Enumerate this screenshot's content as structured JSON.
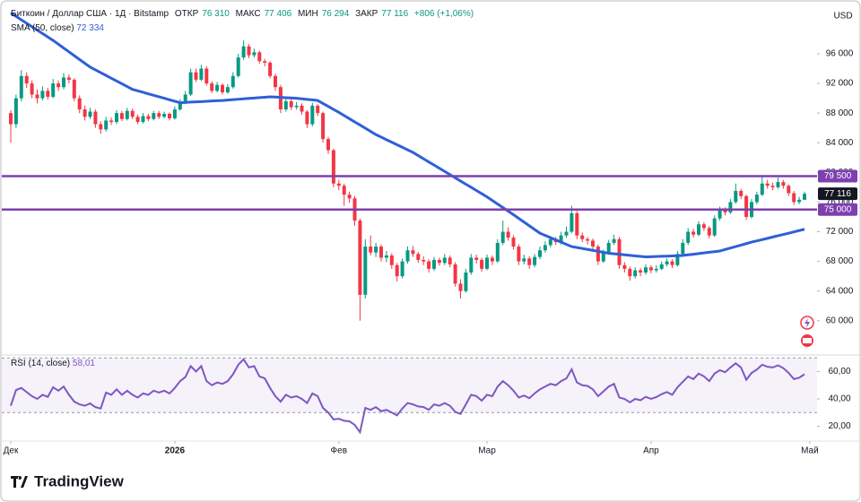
{
  "header": {
    "symbol": "Биткоин / Доллар США · 1Д · Bitstamp",
    "open_label": "ОТКР",
    "open": "76 310",
    "high_label": "МАКС",
    "high": "77 406",
    "low_label": "МИН",
    "low": "76 294",
    "close_label": "ЗАКР",
    "close": "77 116",
    "change": "+806 (+1,06%)",
    "currency": "USD",
    "brand": "TradingView"
  },
  "chart_data": {
    "type": "candlestick",
    "up_color": "#089981",
    "down_color": "#f23645",
    "ylim": [
      55500,
      103250
    ],
    "yticks": [
      {
        "value": 96000,
        "label": "96 000"
      },
      {
        "value": 92000,
        "label": "92 000"
      },
      {
        "value": 88000,
        "label": "88 000"
      },
      {
        "value": 84000,
        "label": "84 000"
      },
      {
        "value": 80000,
        "label": "80 000"
      },
      {
        "value": 76000,
        "label": "76 000"
      },
      {
        "value": 72000,
        "label": "72 000"
      },
      {
        "value": 68000,
        "label": "68 000"
      },
      {
        "value": 64000,
        "label": "64 000"
      },
      {
        "value": 60000,
        "label": "60 000"
      }
    ],
    "xticks": [
      {
        "value": 0,
        "label": "Дек"
      },
      {
        "value": 31,
        "label": "2026"
      },
      {
        "value": 62,
        "label": "Фев"
      },
      {
        "value": 90,
        "label": "Мар"
      },
      {
        "value": 121,
        "label": "Апр"
      },
      {
        "value": 151,
        "label": "Май"
      }
    ],
    "last_price_label": "77 116",
    "last_price_color": "#131722",
    "levels": {
      "color": "#7e3fb0",
      "lines": [
        {
          "value": 79500,
          "label": "79 500"
        },
        {
          "value": 75000,
          "label": "75 000"
        }
      ]
    },
    "open": [
      88000,
      86500,
      90000,
      93000,
      92000,
      90500,
      90000,
      91000,
      90200,
      92000,
      91500,
      92800,
      92500,
      90000,
      88500,
      87500,
      88200,
      86500,
      85800,
      87000,
      86800,
      88000,
      87200,
      88300,
      87500,
      86800,
      87600,
      87200,
      88000,
      87500,
      87900,
      87300,
      88500,
      89500,
      90500,
      93500,
      92500,
      94000,
      92000,
      91000,
      91800,
      90800,
      91500,
      93000,
      95500,
      97000,
      95800,
      96200,
      95000,
      94800,
      93000,
      91500,
      88500,
      89600,
      88800,
      89000,
      88200,
      86500,
      89000,
      88000,
      84500,
      83000,
      78500,
      78200,
      77000,
      76500,
      73500,
      63500,
      70000,
      69200,
      70000,
      68500,
      68800,
      67500,
      66000,
      68000,
      69500,
      69000,
      68200,
      68000,
      67000,
      68200,
      67800,
      68500,
      67600,
      65000,
      64000,
      66500,
      68500,
      68200,
      67000,
      68500,
      68000,
      70500,
      72000,
      71200,
      70000,
      68000,
      68400,
      67500,
      68600,
      69500,
      70200,
      71000,
      70600,
      71500,
      72000,
      74500,
      71500,
      71000,
      70800,
      70000,
      68000,
      69200,
      70500,
      71000,
      67500,
      67000,
      66000,
      66800,
      66500,
      67200,
      66800,
      67000,
      67600,
      68000,
      67500,
      69000,
      70500,
      72000,
      71600,
      73000,
      72500,
      71500,
      73800,
      75000,
      74600,
      76000,
      77500,
      76800,
      74000,
      76000,
      77000,
      78500,
      78200,
      78000,
      78700,
      78200,
      77200,
      76000,
      76310
    ],
    "high": [
      88400,
      90500,
      93800,
      93500,
      92400,
      91200,
      91600,
      91400,
      92600,
      92400,
      93400,
      93200,
      92700,
      90400,
      89000,
      88700,
      88500,
      86900,
      87500,
      87400,
      88400,
      88300,
      88700,
      88600,
      87800,
      88000,
      87900,
      88300,
      88300,
      88200,
      88100,
      88900,
      89900,
      91000,
      94000,
      94000,
      94500,
      94300,
      92300,
      92200,
      92000,
      91900,
      93500,
      96000,
      97800,
      97300,
      96700,
      96400,
      95300,
      95000,
      93300,
      91800,
      90000,
      89900,
      89500,
      89300,
      88400,
      89400,
      89200,
      88200,
      84800,
      83200,
      79000,
      78500,
      77400,
      76800,
      73800,
      71000,
      71500,
      70500,
      70300,
      69400,
      69100,
      67800,
      68400,
      70000,
      70100,
      69300,
      68700,
      68300,
      68600,
      68500,
      69000,
      68800,
      67900,
      65600,
      67000,
      69000,
      68900,
      68500,
      68900,
      68800,
      71000,
      73500,
      72600,
      71500,
      70300,
      68900,
      68700,
      69000,
      70000,
      70700,
      71400,
      71300,
      72000,
      72700,
      75500,
      74800,
      71900,
      71300,
      71100,
      70300,
      69600,
      70900,
      71600,
      71300,
      67900,
      67300,
      67200,
      67100,
      67600,
      67500,
      67500,
      68000,
      68400,
      68300,
      69400,
      71000,
      72500,
      72400,
      73400,
      73300,
      72800,
      74200,
      75400,
      75300,
      76400,
      78500,
      77800,
      77000,
      76400,
      77400,
      79500,
      79000,
      78600,
      79300,
      79000,
      78400,
      77500,
      76700,
      77406
    ],
    "low": [
      84000,
      86000,
      89600,
      91400,
      90000,
      89300,
      89700,
      89800,
      90000,
      91000,
      91200,
      92000,
      89600,
      88000,
      87000,
      87200,
      86000,
      85200,
      85500,
      86400,
      86500,
      86900,
      87000,
      87200,
      86500,
      86600,
      86900,
      87000,
      87200,
      87300,
      87000,
      87100,
      88300,
      89200,
      90300,
      92200,
      92300,
      91700,
      90700,
      90800,
      90500,
      90600,
      91300,
      92800,
      95200,
      95400,
      95500,
      94700,
      94300,
      92700,
      91000,
      88000,
      88200,
      88400,
      88500,
      87800,
      86000,
      86200,
      87600,
      84000,
      82500,
      78000,
      77600,
      75500,
      75900,
      72800,
      60000,
      63000,
      68800,
      68600,
      68000,
      67900,
      67000,
      65300,
      65700,
      67700,
      68600,
      67800,
      67500,
      66500,
      66700,
      67400,
      67500,
      67200,
      64600,
      63000,
      63800,
      66200,
      67700,
      66600,
      66800,
      67500,
      67800,
      70200,
      70800,
      69600,
      67500,
      67600,
      67000,
      67200,
      68300,
      69200,
      69900,
      70200,
      70300,
      71200,
      71800,
      71000,
      70600,
      70300,
      69600,
      67500,
      67800,
      69000,
      70200,
      67000,
      66500,
      65400,
      65700,
      66000,
      66200,
      66400,
      66500,
      66800,
      67300,
      67100,
      67300,
      68800,
      70200,
      71200,
      71400,
      72100,
      71100,
      71300,
      73500,
      74200,
      74400,
      75800,
      76400,
      73600,
      73800,
      75700,
      76800,
      77800,
      77600,
      77800,
      77800,
      76800,
      75600,
      75700,
      76294
    ],
    "close": [
      86500,
      90000,
      93000,
      92000,
      90500,
      90000,
      91000,
      90200,
      92000,
      91500,
      92800,
      92500,
      90000,
      88500,
      87500,
      88200,
      86500,
      85800,
      87000,
      86800,
      88000,
      87200,
      88300,
      87500,
      86800,
      87600,
      87200,
      88000,
      87500,
      87900,
      87300,
      88500,
      89500,
      90500,
      93500,
      92500,
      94000,
      92000,
      91000,
      91800,
      90800,
      91500,
      93000,
      95500,
      97000,
      95800,
      96200,
      95000,
      94800,
      93000,
      91500,
      88500,
      89600,
      88800,
      89000,
      88200,
      86500,
      89000,
      88000,
      84500,
      83000,
      78500,
      78200,
      77000,
      76500,
      73500,
      63500,
      70000,
      69200,
      70000,
      68500,
      68800,
      67500,
      66000,
      68000,
      69500,
      69000,
      68200,
      68000,
      67000,
      68200,
      67800,
      68500,
      67600,
      65000,
      64000,
      66500,
      68500,
      68200,
      67000,
      68500,
      68000,
      70500,
      72000,
      71200,
      70000,
      68000,
      68400,
      67500,
      68600,
      69500,
      70200,
      71000,
      70600,
      71500,
      72000,
      74500,
      71500,
      71000,
      70800,
      70000,
      68000,
      69200,
      70500,
      71000,
      67500,
      67000,
      66000,
      66800,
      66500,
      67200,
      66800,
      67000,
      67600,
      68000,
      67500,
      69000,
      70500,
      72000,
      71600,
      73000,
      72500,
      71500,
      73800,
      75000,
      74600,
      76000,
      77500,
      76800,
      74000,
      76000,
      77000,
      78500,
      78200,
      78000,
      78700,
      78200,
      77200,
      76000,
      76310,
      77116
    ],
    "sma": {
      "name": "SMA (50, close)",
      "value_label": "72 334",
      "color": "#2f5fd8",
      "values": [
        101500,
        101040,
        100580,
        100110,
        99650,
        99190,
        98730,
        98260,
        97800,
        97290,
        96770,
        96260,
        95740,
        95230,
        94710,
        94200,
        93830,
        93450,
        93080,
        92700,
        92330,
        91950,
        91580,
        91200,
        91000,
        90800,
        90600,
        90400,
        90200,
        90000,
        89800,
        89600,
        89400,
        89440,
        89480,
        89510,
        89550,
        89590,
        89630,
        89660,
        89700,
        89760,
        89810,
        89870,
        89920,
        89980,
        90030,
        90090,
        90140,
        90200,
        90160,
        90120,
        90080,
        90040,
        90000,
        89920,
        89850,
        89780,
        89700,
        89300,
        88900,
        88500,
        88100,
        87670,
        87240,
        86810,
        86390,
        85960,
        85530,
        85100,
        84760,
        84410,
        84070,
        83730,
        83390,
        83040,
        82700,
        82270,
        81840,
        81410,
        80990,
        80560,
        80130,
        79700,
        79270,
        78840,
        78410,
        77990,
        77560,
        77130,
        76700,
        76220,
        75740,
        75260,
        74780,
        74300,
        73800,
        73300,
        72800,
        72300,
        71800,
        71500,
        71200,
        70900,
        70600,
        70300,
        70000,
        69870,
        69740,
        69610,
        69490,
        69360,
        69230,
        69100,
        69030,
        68960,
        68890,
        68810,
        68740,
        68670,
        68600,
        68630,
        68660,
        68690,
        68710,
        68740,
        68770,
        68800,
        68890,
        68970,
        69060,
        69140,
        69230,
        69310,
        69400,
        69600,
        69800,
        70000,
        70200,
        70400,
        70600,
        70770,
        70940,
        71110,
        71290,
        71460,
        71630,
        71800,
        71980,
        72160,
        72334
      ]
    },
    "rsi": {
      "name": "RSI (14, close)",
      "value_label": "58,01",
      "color": "#7e57c2",
      "ylim": [
        10.5,
        70.8
      ],
      "bands": [
        30,
        70
      ],
      "yticks": [
        {
          "value": 60,
          "label": "60,00"
        },
        {
          "value": 40,
          "label": "40,00"
        },
        {
          "value": 20,
          "label": "20,00"
        }
      ],
      "values": [
        35,
        46.5,
        48,
        45,
        42,
        40,
        43,
        41.5,
        48.5,
        46,
        49,
        43,
        38,
        36,
        35,
        36.7,
        34,
        33,
        44.6,
        43,
        47,
        43,
        46,
        43,
        41,
        44,
        43,
        46,
        44.6,
        46,
        44,
        48,
        53,
        56,
        64,
        60,
        64,
        53,
        50,
        52,
        51,
        53,
        58,
        65,
        69,
        63,
        64,
        56.4,
        55,
        48,
        42,
        38,
        43,
        41,
        42,
        40,
        37,
        44,
        42,
        33.4,
        30,
        25,
        25.5,
        24,
        23.6,
        21,
        15.7,
        33.4,
        32,
        34,
        31,
        32,
        30,
        28,
        33,
        37,
        36,
        34.5,
        34,
        32,
        36,
        35,
        37,
        35,
        30.5,
        29,
        36,
        43,
        42,
        38.7,
        43,
        42,
        49,
        53,
        50,
        46,
        41,
        42.5,
        40.5,
        44,
        47,
        49,
        51,
        50,
        53,
        55,
        61.6,
        52,
        50,
        49.5,
        47,
        42,
        45.5,
        49,
        51,
        41,
        40,
        37.5,
        40,
        39,
        41.5,
        40,
        41.3,
        43.5,
        45,
        43,
        48.5,
        52.5,
        56.4,
        54.5,
        58.5,
        56.5,
        53,
        58.5,
        61,
        59.5,
        63,
        66,
        63,
        54,
        59,
        61.5,
        65,
        63.5,
        63,
        64.5,
        62.5,
        59,
        54.5,
        55.5,
        58.01
      ]
    }
  }
}
